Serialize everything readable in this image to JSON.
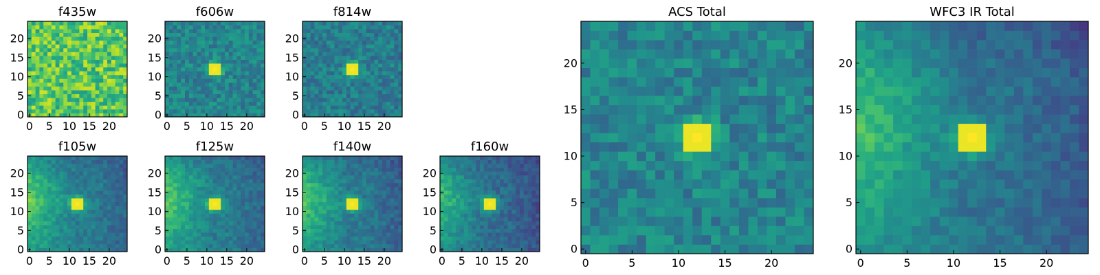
{
  "chart_data": [
    {
      "type": "heatmap",
      "title": "f435w",
      "colormap": "viridis",
      "grid": false,
      "xlim": [
        -0.5,
        24.5
      ],
      "ylim": [
        -0.5,
        24.5
      ],
      "xticks": [
        0,
        5,
        10,
        15,
        20
      ],
      "yticks": [
        0,
        5,
        10,
        15,
        20
      ],
      "pattern": "noise",
      "source_center": null,
      "source_peak": 0.0,
      "background_level": 0.74,
      "noise_level": 0.2,
      "gradient": "none"
    },
    {
      "type": "heatmap",
      "title": "f606w",
      "colormap": "viridis",
      "grid": false,
      "xlim": [
        -0.5,
        24.5
      ],
      "ylim": [
        -0.5,
        24.5
      ],
      "xticks": [
        0,
        5,
        10,
        15,
        20
      ],
      "yticks": [
        0,
        5,
        10,
        15,
        20
      ],
      "pattern": "point_source",
      "source_center": [
        12,
        12
      ],
      "source_peak": 1.0,
      "background_level": 0.45,
      "noise_level": 0.12,
      "gradient": "none"
    },
    {
      "type": "heatmap",
      "title": "f814w",
      "colormap": "viridis",
      "grid": false,
      "xlim": [
        -0.5,
        24.5
      ],
      "ylim": [
        -0.5,
        24.5
      ],
      "xticks": [
        0,
        5,
        10,
        15,
        20
      ],
      "yticks": [
        0,
        5,
        10,
        15,
        20
      ],
      "pattern": "point_source",
      "source_center": [
        12,
        12
      ],
      "source_peak": 1.0,
      "background_level": 0.42,
      "noise_level": 0.12,
      "gradient": "none"
    },
    {
      "type": "heatmap",
      "title": "f105w",
      "colormap": "viridis",
      "grid": false,
      "xlim": [
        -0.5,
        24.5
      ],
      "ylim": [
        -0.5,
        24.5
      ],
      "xticks": [
        0,
        5,
        10,
        15,
        20
      ],
      "yticks": [
        0,
        5,
        10,
        15,
        20
      ],
      "pattern": "point_source",
      "source_center": [
        12,
        12
      ],
      "source_peak": 1.0,
      "background_level": 0.42,
      "noise_level": 0.08,
      "gradient": "left"
    },
    {
      "type": "heatmap",
      "title": "f125w",
      "colormap": "viridis",
      "grid": false,
      "xlim": [
        -0.5,
        24.5
      ],
      "ylim": [
        -0.5,
        24.5
      ],
      "xticks": [
        0,
        5,
        10,
        15,
        20
      ],
      "yticks": [
        0,
        5,
        10,
        15,
        20
      ],
      "pattern": "point_source",
      "source_center": [
        12,
        12
      ],
      "source_peak": 1.0,
      "background_level": 0.42,
      "noise_level": 0.08,
      "gradient": "left"
    },
    {
      "type": "heatmap",
      "title": "f140w",
      "colormap": "viridis",
      "grid": false,
      "xlim": [
        -0.5,
        24.5
      ],
      "ylim": [
        -0.5,
        24.5
      ],
      "xticks": [
        0,
        5,
        10,
        15,
        20
      ],
      "yticks": [
        0,
        5,
        10,
        15,
        20
      ],
      "pattern": "point_source",
      "source_center": [
        12,
        12
      ],
      "source_peak": 1.0,
      "background_level": 0.4,
      "noise_level": 0.08,
      "gradient": "left"
    },
    {
      "type": "heatmap",
      "title": "f160w",
      "colormap": "viridis",
      "grid": false,
      "xlim": [
        -0.5,
        24.5
      ],
      "ylim": [
        -0.5,
        24.5
      ],
      "xticks": [
        0,
        5,
        10,
        15,
        20
      ],
      "yticks": [
        0,
        5,
        10,
        15,
        20
      ],
      "pattern": "point_source",
      "source_center": [
        12,
        12
      ],
      "source_peak": 1.0,
      "background_level": 0.35,
      "noise_level": 0.08,
      "gradient": "left"
    },
    {
      "type": "heatmap",
      "title": "ACS Total",
      "colormap": "viridis",
      "grid": false,
      "xlim": [
        -0.5,
        24.5
      ],
      "ylim": [
        -0.5,
        24.5
      ],
      "xticks": [
        0,
        5,
        10,
        15,
        20
      ],
      "yticks": [
        0,
        5,
        10,
        15,
        20
      ],
      "pattern": "point_source",
      "source_center": [
        12,
        12
      ],
      "source_peak": 1.0,
      "background_level": 0.45,
      "noise_level": 0.12,
      "gradient": "none"
    },
    {
      "type": "heatmap",
      "title": "WFC3 IR Total",
      "colormap": "viridis",
      "grid": false,
      "xlim": [
        -0.5,
        24.5
      ],
      "ylim": [
        -0.5,
        24.5
      ],
      "xticks": [
        0,
        5,
        10,
        15,
        20
      ],
      "yticks": [
        0,
        5,
        10,
        15,
        20
      ],
      "pattern": "point_source",
      "source_center": [
        12,
        12
      ],
      "source_peak": 1.0,
      "background_level": 0.38,
      "noise_level": 0.07,
      "gradient": "left"
    }
  ]
}
